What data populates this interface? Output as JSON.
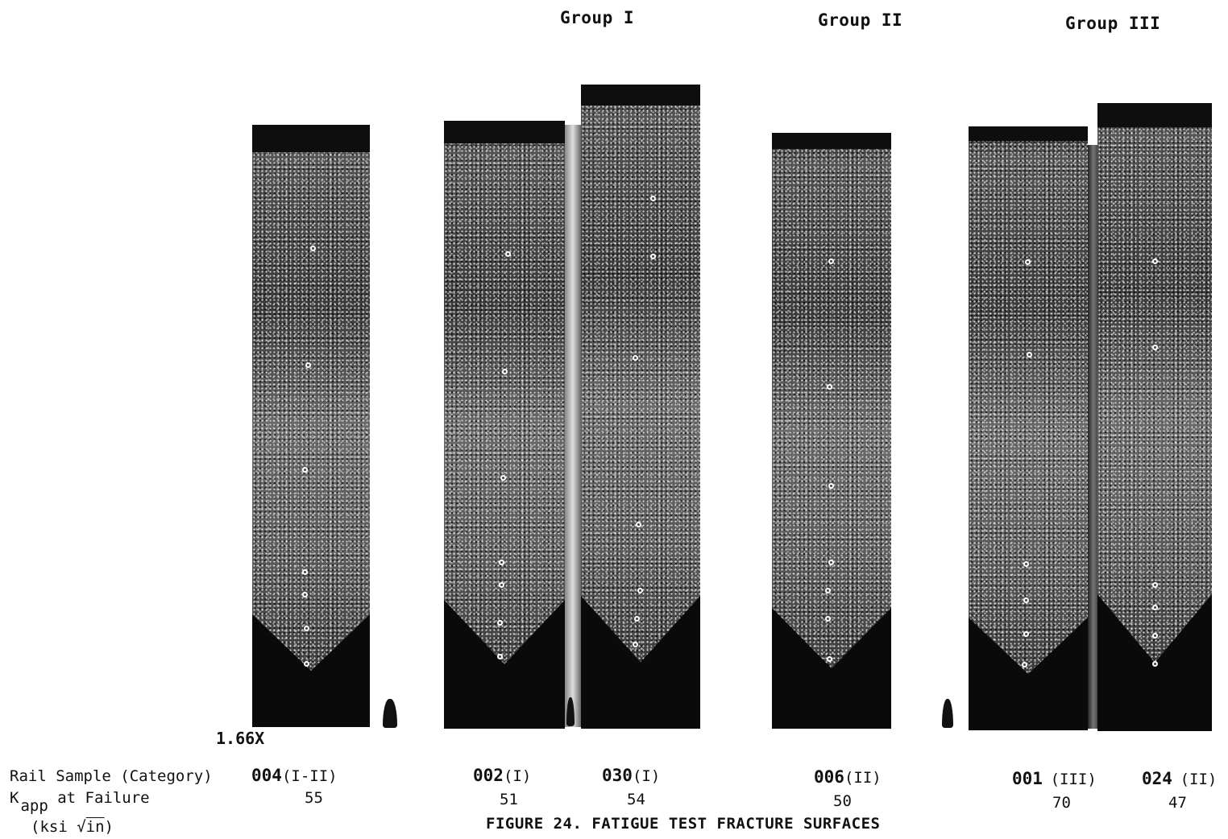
{
  "groups": [
    {
      "label": "Group I"
    },
    {
      "label": "Group II"
    },
    {
      "label": "Group III"
    }
  ],
  "magnification": "1.66X",
  "row_labels": {
    "rail_sample": "Rail Sample (Category)",
    "k_letter": "K",
    "k_sub": "app",
    "k_rest": "at Failure",
    "units_open": "(ksi ",
    "units_root": "√",
    "units_in": "in",
    "units_close": ")"
  },
  "samples": [
    {
      "number": "004",
      "category": "(I-II)",
      "k_value": "55"
    },
    {
      "number": "002",
      "category": "(I)",
      "k_value": "51"
    },
    {
      "number": "030",
      "category": "(I)",
      "k_value": "54"
    },
    {
      "number": "006",
      "category": "(II)",
      "k_value": "50"
    },
    {
      "number": "001",
      "category": "(III)",
      "k_value": "70"
    },
    {
      "number": "024",
      "category": "(II)",
      "k_value": "47"
    }
  ],
  "figure_caption": "FIGURE 24.  FATIGUE TEST FRACTURE SURFACES"
}
